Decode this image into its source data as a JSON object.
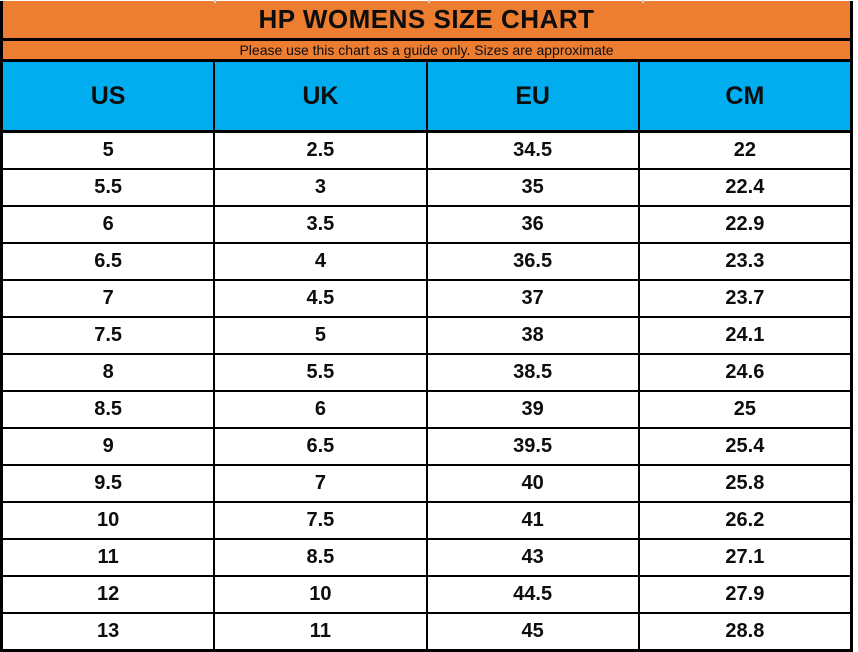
{
  "colors": {
    "header_orange": "#ED7D31",
    "header_blue": "#00AEEF",
    "grid_black": "#000000",
    "row_white": "#FFFFFF"
  },
  "chart_data": {
    "type": "table",
    "title": "HP WOMENS SIZE CHART",
    "subtitle": "Please use this chart as a guide only. Sizes are approximate",
    "columns": [
      "US",
      "UK",
      "EU",
      "CM"
    ],
    "rows": [
      [
        "5",
        "2.5",
        "34.5",
        "22"
      ],
      [
        "5.5",
        "3",
        "35",
        "22.4"
      ],
      [
        "6",
        "3.5",
        "36",
        "22.9"
      ],
      [
        "6.5",
        "4",
        "36.5",
        "23.3"
      ],
      [
        "7",
        "4.5",
        "37",
        "23.7"
      ],
      [
        "7.5",
        "5",
        "38",
        "24.1"
      ],
      [
        "8",
        "5.5",
        "38.5",
        "24.6"
      ],
      [
        "8.5",
        "6",
        "39",
        "25"
      ],
      [
        "9",
        "6.5",
        "39.5",
        "25.4"
      ],
      [
        "9.5",
        "7",
        "40",
        "25.8"
      ],
      [
        "10",
        "7.5",
        "41",
        "26.2"
      ],
      [
        "11",
        "8.5",
        "43",
        "27.1"
      ],
      [
        "12",
        "10",
        "44.5",
        "27.9"
      ],
      [
        "13",
        "11",
        "45",
        "28.8"
      ]
    ]
  }
}
